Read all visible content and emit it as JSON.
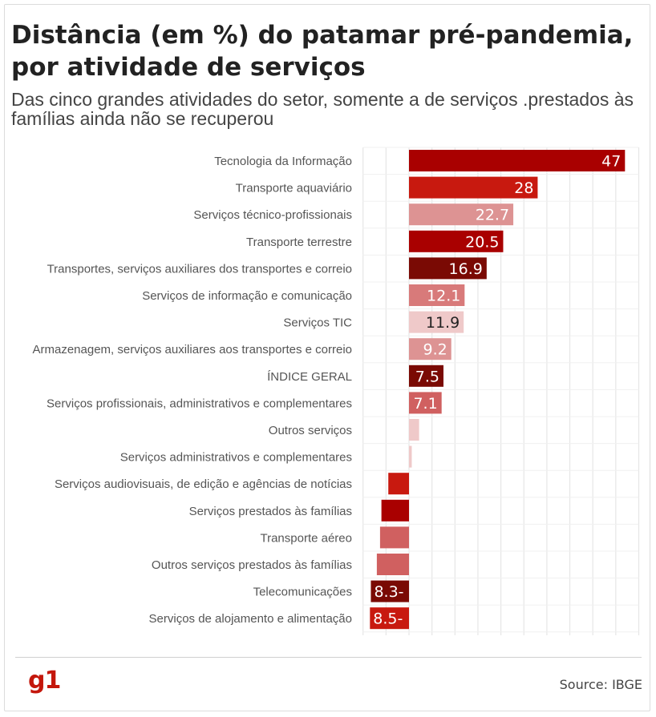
{
  "title": "Distância (em %) do patamar pré-pandemia, por atividade de serviços",
  "subtitle": "Das cinco grandes atividades do setor, somente a de serviços .prestados às famílias ainda não se recuperou",
  "source": "Source: IBGE",
  "logo": "g1",
  "chart_data": {
    "type": "bar",
    "orientation": "horizontal",
    "grid": true,
    "categories": [
      "Tecnologia da Informação",
      "Transporte aquaviário",
      "Serviços técnico-profissionais",
      "Transporte terrestre",
      "Transportes, serviços auxiliares dos transportes e correio",
      "Serviços de informação e comunicação",
      "Serviços TIC",
      "Armazenagem, serviços auxiliares aos transportes e correio",
      "ÍNDICE GERAL",
      "Serviços profissionais, administrativos e complementares",
      "Outros serviços",
      "Serviços administrativos e complementares",
      "Serviços audiovisuais, de edição e agências de notícias",
      "Serviços prestados às famílias",
      "Transporte aéreo",
      "Outros serviços prestados às famílias",
      "Telecomunicações",
      "Serviços de alojamento e alimentação"
    ],
    "values": [
      47,
      28,
      22.7,
      20.5,
      16.9,
      12.1,
      11.9,
      9.2,
      7.5,
      7.1,
      2.2,
      0.6,
      -4.5,
      -6.0,
      -6.3,
      -7.0,
      -8.3,
      -8.5
    ],
    "labels": [
      "47",
      "28",
      "22.7",
      "20.5",
      "16.9",
      "12.1",
      "11.9",
      "9.2",
      "7.5",
      "7.1",
      "",
      "",
      "",
      "",
      "",
      "",
      "8.3-",
      "8.5-"
    ],
    "colors": [
      "#a90000",
      "#c8190f",
      "#dd9393",
      "#a90000",
      "#7a0a04",
      "#d87a7a",
      "#efc9c9",
      "#dd9393",
      "#7a0a04",
      "#d06060",
      "#efc9c9",
      "#efc9c9",
      "#c8190f",
      "#a90000",
      "#d06060",
      "#d06060",
      "#7a0a04",
      "#c8190f"
    ],
    "label_colors": [
      "#ffffff",
      "#ffffff",
      "#ffffff",
      "#ffffff",
      "#ffffff",
      "#ffffff",
      "#222222",
      "#ffffff",
      "#ffffff",
      "#ffffff",
      "#ffffff",
      "#ffffff",
      "#ffffff",
      "#ffffff",
      "#ffffff",
      "#ffffff",
      "#ffffff",
      "#ffffff"
    ],
    "xlim": [
      -10,
      50
    ],
    "gridline_step": 5
  }
}
